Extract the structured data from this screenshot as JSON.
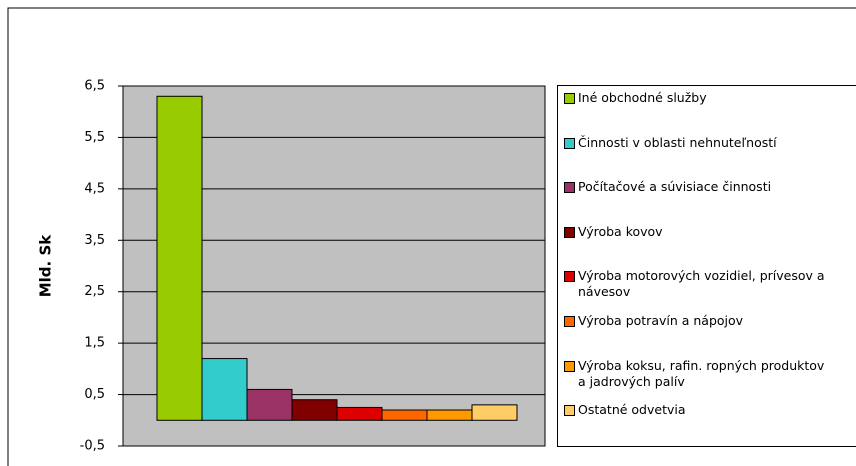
{
  "chart_data": {
    "type": "bar",
    "y_label": "Mld. Sk",
    "categories": [
      "Iné obchodné služby",
      "Činnosti v oblasti nehnuteľností",
      "Počítačové a súvisiace činnosti",
      "Výroba kovov",
      "Výroba motorových vozidiel, prívesov a návesov",
      "Výroba potravín a nápojov",
      "Výroba koksu, rafin. ropných produktov a jadrových palív",
      "Ostatné odvetvia"
    ],
    "values": [
      6.3,
      1.2,
      0.6,
      0.4,
      0.25,
      0.2,
      0.2,
      0.3
    ],
    "colors": [
      "#99cc00",
      "#33cccc",
      "#993366",
      "#800000",
      "#dd0000",
      "#ff6600",
      "#ff9900",
      "#ffcc66"
    ],
    "ylim": [
      -0.5,
      6.5
    ],
    "yticks": [
      {
        "value": 6.5,
        "label": "6,5"
      },
      {
        "value": 5.5,
        "label": "5,5"
      },
      {
        "value": 4.5,
        "label": "4,5"
      },
      {
        "value": 3.5,
        "label": "3,5"
      },
      {
        "value": 2.5,
        "label": "2,5"
      },
      {
        "value": 1.5,
        "label": "1,5"
      },
      {
        "value": 0.5,
        "label": "0,5"
      },
      {
        "value": -0.5,
        "label": "-0,5"
      }
    ],
    "grid": true,
    "legend": "right"
  }
}
